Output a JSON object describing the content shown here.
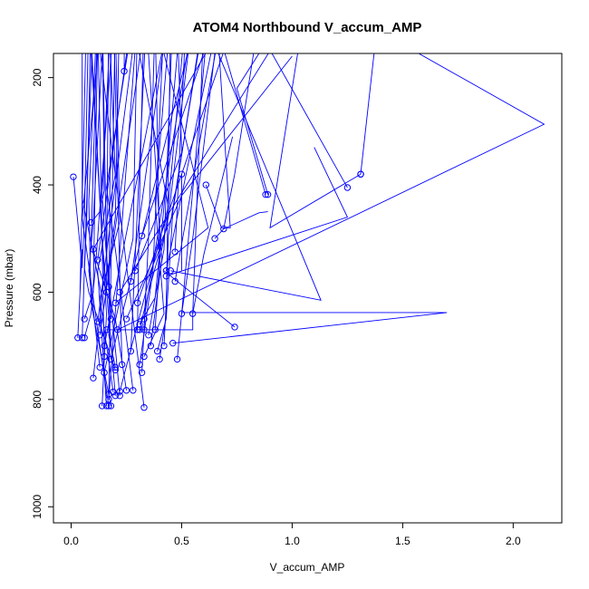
{
  "chart_data": {
    "type": "line",
    "title": "ATOM4 Northbound V_accum_AMP",
    "xlabel": "V_accum_AMP",
    "ylabel": "Pressure (mbar)",
    "xlim": [
      -0.08,
      2.22
    ],
    "ylim": [
      1030,
      155
    ],
    "y_inverted": true,
    "x_ticks": [
      0.0,
      0.5,
      1.0,
      1.5,
      2.0
    ],
    "x_tick_labels": [
      "0.0",
      "0.5",
      "1.0",
      "1.5",
      "2.0"
    ],
    "y_ticks": [
      200,
      400,
      600,
      800,
      1000
    ],
    "y_tick_labels": [
      "200",
      "400",
      "600",
      "800",
      "1000"
    ],
    "grid": false,
    "legend": "none",
    "color": "#0000ff",
    "series": [
      {
        "x": [
          0.33,
          0.1
        ],
        "y": [
          815,
          50
        ]
      },
      {
        "x": [
          0.18,
          0.09,
          0.08,
          0.12
        ],
        "y": [
          812,
          620,
          430,
          60
        ]
      },
      {
        "x": [
          0.16,
          0.12,
          0.2,
          0.17
        ],
        "y": [
          812,
          560,
          380,
          80
        ]
      },
      {
        "x": [
          0.17,
          0.13,
          0.05,
          0.14
        ],
        "y": [
          812,
          700,
          462,
          70
        ]
      },
      {
        "x": [
          0.14,
          0.16,
          0.08
        ],
        "y": [
          812,
          640,
          80
        ]
      },
      {
        "x": [
          0.17,
          0.3
        ],
        "y": [
          800,
          90
        ]
      },
      {
        "x": [
          0.2,
          0.14,
          0.08
        ],
        "y": [
          793,
          500,
          50
        ]
      },
      {
        "x": [
          0.22,
          0.16,
          0.14
        ],
        "y": [
          793,
          530,
          60
        ]
      },
      {
        "x": [
          0.22,
          0.44,
          0.26
        ],
        "y": [
          785,
          440,
          50
        ]
      },
      {
        "x": [
          0.25,
          0.2,
          0.09,
          0.12
        ],
        "y": [
          783,
          650,
          510,
          80
        ]
      },
      {
        "x": [
          0.28,
          0.2,
          0.16,
          0.28
        ],
        "y": [
          783,
          520,
          405,
          90
        ]
      },
      {
        "x": [
          0.19,
          0.13,
          0.22,
          0.2
        ],
        "y": [
          786,
          612,
          468,
          100
        ]
      },
      {
        "x": [
          0.17,
          0.2
        ],
        "y": [
          790,
          80
        ]
      },
      {
        "x": [
          0.1,
          0.14,
          0.05,
          0.05
        ],
        "y": [
          760,
          610,
          425,
          80
        ]
      },
      {
        "x": [
          0.13,
          0.08,
          0.1,
          0.15
        ],
        "y": [
          740,
          560,
          470,
          80
        ]
      },
      {
        "x": [
          0.2,
          0.08,
          0.06,
          0.1
        ],
        "y": [
          745,
          600,
          555,
          80
        ]
      },
      {
        "x": [
          0.2,
          0.17,
          0.18
        ],
        "y": [
          740,
          680,
          160
        ]
      },
      {
        "x": [
          0.23,
          0.19
        ],
        "y": [
          735,
          60
        ]
      },
      {
        "x": [
          0.15,
          0.28,
          0.3
        ],
        "y": [
          750,
          500,
          90
        ]
      },
      {
        "x": [
          0.15,
          0.12
        ],
        "y": [
          720,
          90
        ]
      },
      {
        "x": [
          0.18,
          0.14,
          0.18
        ],
        "y": [
          650,
          420,
          80
        ]
      },
      {
        "x": [
          0.17,
          0.17,
          0.2,
          0.22
        ],
        "y": [
          590,
          550,
          460,
          50
        ]
      },
      {
        "x": [
          0.16,
          0.17
        ],
        "y": [
          600,
          70
        ]
      },
      {
        "x": [
          0.06,
          0.09,
          0.11,
          0.2
        ],
        "y": [
          685,
          640,
          555,
          50
        ]
      },
      {
        "x": [
          0.03,
          0.05,
          0.04,
          0.07
        ],
        "y": [
          685,
          520,
          600,
          70
        ]
      },
      {
        "x": [
          0.05,
          0.06,
          0.07,
          0.09
        ],
        "y": [
          685,
          560,
          470,
          70
        ]
      },
      {
        "x": [
          0.01,
          0.05,
          0.06,
          0.08
        ],
        "y": [
          385,
          555,
          460,
          80
        ]
      },
      {
        "x": [
          0.06,
          0.1,
          0.12
        ],
        "y": [
          650,
          600,
          120
        ]
      },
      {
        "x": [
          0.09,
          0.13,
          0.15,
          0.14
        ],
        "y": [
          470,
          450,
          410,
          60
        ]
      },
      {
        "x": [
          0.12,
          0.2,
          0.3
        ],
        "y": [
          655,
          400,
          80
        ]
      },
      {
        "x": [
          0.24,
          0.24
        ],
        "y": [
          188,
          100
        ]
      },
      {
        "x": [
          0.32,
          0.35,
          0.38
        ],
        "y": [
          750,
          500,
          90
        ]
      },
      {
        "x": [
          0.31,
          0.37,
          0.42
        ],
        "y": [
          735,
          560,
          90
        ]
      },
      {
        "x": [
          0.33,
          0.42,
          0.38,
          0.45
        ],
        "y": [
          720,
          640,
          430,
          80
        ]
      },
      {
        "x": [
          0.36,
          0.41,
          0.34
        ],
        "y": [
          700,
          540,
          90
        ]
      },
      {
        "x": [
          0.27,
          0.34
        ],
        "y": [
          710,
          90
        ]
      },
      {
        "x": [
          0.3,
          0.31,
          0.33
        ],
        "y": [
          670,
          420,
          80
        ]
      },
      {
        "x": [
          0.33,
          0.34,
          0.4,
          0.38
        ],
        "y": [
          670,
          580,
          520,
          90
        ]
      },
      {
        "x": [
          0.31,
          0.38,
          0.42,
          0.46
        ],
        "y": [
          660,
          610,
          520,
          80
        ]
      },
      {
        "x": [
          0.31,
          0.35,
          0.43,
          0.52
        ],
        "y": [
          670,
          600,
          480,
          80
        ]
      },
      {
        "x": [
          0.35,
          0.38,
          0.42,
          0.5
        ],
        "y": [
          680,
          610,
          440,
          60
        ]
      },
      {
        "x": [
          0.38,
          0.4,
          0.44,
          0.56
        ],
        "y": [
          670,
          540,
          460,
          50
        ]
      },
      {
        "x": [
          0.39,
          0.43,
          0.46,
          0.6
        ],
        "y": [
          710,
          650,
          450,
          80
        ]
      },
      {
        "x": [
          0.4,
          0.43,
          0.45
        ],
        "y": [
          725,
          645,
          90
        ]
      },
      {
        "x": [
          0.42,
          0.43,
          0.44,
          0.6
        ],
        "y": [
          700,
          620,
          495,
          90
        ]
      },
      {
        "x": [
          0.48,
          0.5,
          0.55,
          0.68
        ],
        "y": [
          725,
          640,
          500,
          50
        ]
      },
      {
        "x": [
          0.5,
          0.52,
          0.62
        ],
        "y": [
          640,
          550,
          90
        ]
      },
      {
        "x": [
          0.47,
          0.68
        ],
        "y": [
          580,
          90
        ]
      },
      {
        "x": [
          0.43,
          0.66
        ],
        "y": [
          560,
          100
        ]
      },
      {
        "x": [
          0.32,
          0.66
        ],
        "y": [
          495,
          80
        ]
      },
      {
        "x": [
          0.33,
          0.55
        ],
        "y": [
          650,
          90
        ]
      },
      {
        "x": [
          0.3,
          0.5,
          0.75
        ],
        "y": [
          620,
          380,
          80
        ]
      },
      {
        "x": [
          0.5,
          0.5
        ],
        "y": [
          380,
          560
        ]
      },
      {
        "x": [
          0.47,
          0.52
        ],
        "y": [
          525,
          90
        ]
      },
      {
        "x": [
          0.55,
          0.6,
          0.73
        ],
        "y": [
          640,
          530,
          310
        ]
      },
      {
        "x": [
          0.61,
          0.68,
          0.72,
          0.66
        ],
        "y": [
          400,
          480,
          480,
          90
        ]
      },
      {
        "x": [
          0.65,
          0.69,
          0.85,
          0.89
        ],
        "y": [
          500,
          482,
          452,
          450
        ]
      },
      {
        "x": [
          0.69,
          0.74,
          0.85
        ],
        "y": [
          482,
          380,
          90
        ]
      },
      {
        "x": [
          0.74,
          0.42
        ],
        "y": [
          665,
          560
        ]
      },
      {
        "x": [
          0.45,
          1.13,
          0.6
        ],
        "y": [
          560,
          615,
          90
        ]
      },
      {
        "x": [
          0.88,
          0.65
        ],
        "y": [
          418,
          90
        ]
      },
      {
        "x": [
          0.89,
          0.75,
          0.95
        ],
        "y": [
          418,
          220,
          90
        ]
      },
      {
        "x": [
          1.25,
          0.82,
          1.1
        ],
        "y": [
          405,
          90,
          80
        ]
      },
      {
        "x": [
          1.31,
          0.9,
          1.05
        ],
        "y": [
          380,
          480,
          90
        ]
      },
      {
        "x": [
          1.31,
          1.38,
          1.25
        ],
        "y": [
          380,
          120,
          90
        ]
      },
      {
        "x": [
          0.46,
          1.7,
          0.5
        ],
        "y": [
          695,
          638,
          638
        ]
      },
      {
        "x": [
          0.21,
          2.14,
          1.25
        ],
        "y": [
          670,
          287,
          80
        ]
      },
      {
        "x": [
          0.16,
          0.55,
          0.55,
          0.6
        ],
        "y": [
          670,
          670,
          640,
          90
        ]
      },
      {
        "x": [
          0.43,
          1.25,
          1.1
        ],
        "y": [
          570,
          460,
          330
        ]
      },
      {
        "x": [
          0.25,
          0.5,
          1.0
        ],
        "y": [
          650,
          420,
          160
        ]
      },
      {
        "x": [
          0.2,
          0.62,
          0.38
        ],
        "y": [
          620,
          480,
          90
        ]
      },
      {
        "x": [
          0.12,
          0.28
        ],
        "y": [
          540,
          70
        ]
      },
      {
        "x": [
          0.13,
          0.35
        ],
        "y": [
          680,
          50
        ]
      },
      {
        "x": [
          0.15,
          0.46
        ],
        "y": [
          700,
          50
        ]
      },
      {
        "x": [
          0.18,
          0.56
        ],
        "y": [
          725,
          100
        ]
      },
      {
        "x": [
          0.1,
          0.74,
          0.86
        ],
        "y": [
          520,
          60,
          80
        ]
      },
      {
        "x": [
          0.22,
          0.9,
          1.2
        ],
        "y": [
          600,
          150,
          70
        ]
      },
      {
        "x": [
          0.27,
          0.44
        ],
        "y": [
          580,
          80
        ]
      },
      {
        "x": [
          0.29,
          0.5,
          0.48
        ],
        "y": [
          560,
          340,
          90
        ]
      }
    ]
  }
}
